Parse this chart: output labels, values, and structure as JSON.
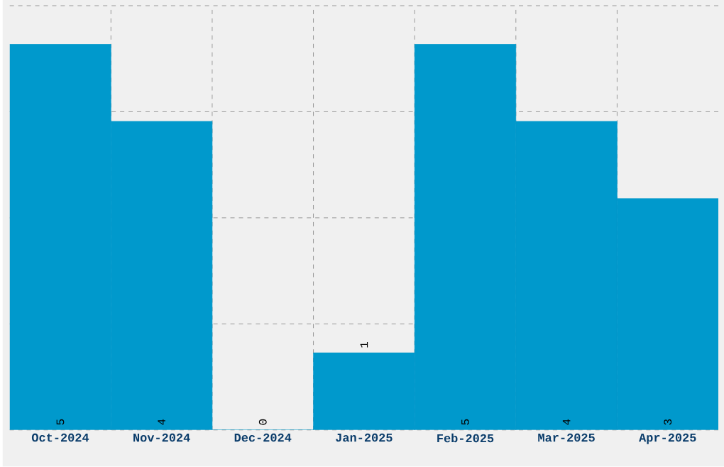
{
  "chart_data": {
    "type": "bar",
    "categories": [
      "Oct-2024",
      "Nov-2024",
      "Dec-2024",
      "Jan-2025",
      "Feb-2025",
      "Mar-2025",
      "Apr-2025"
    ],
    "values": [
      5,
      4,
      0,
      1,
      5,
      4,
      3
    ],
    "color": "#0099cc",
    "ylim": [
      0,
      5.5
    ],
    "yticks": [
      {
        "value": 0,
        "label": null
      },
      {
        "value": 1.375,
        "label": null
      },
      {
        "value": 2.75,
        "label": null
      },
      {
        "value": 4.125,
        "label": null
      },
      {
        "value": 5.5,
        "label": null
      }
    ],
    "grid": true,
    "data_labels": true,
    "tick_labels": "x"
  }
}
